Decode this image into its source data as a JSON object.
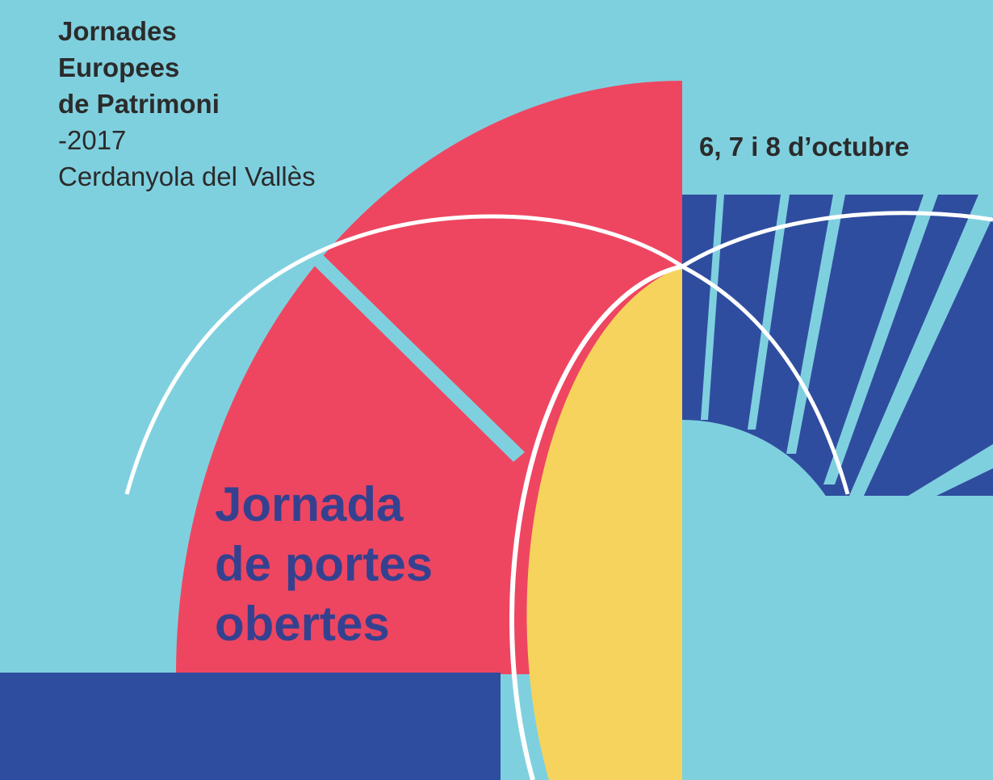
{
  "event": {
    "line1": "Jornades",
    "line2": "Europees",
    "line3": "de Patrimoni",
    "year": "-2017",
    "place": "Cerdanyola del Vallès"
  },
  "dates": "6, 7 i 8 d’octubre",
  "headline": {
    "line1": "Jornada",
    "line2": "de portes",
    "line3": "obertes"
  },
  "colors": {
    "background": "#7fd0df",
    "red": "#ee4660",
    "yellow": "#f6d35c",
    "navy": "#2f4d9f",
    "headline_text": "#35418f",
    "header_text": "#2b2b2b",
    "arc_line": "#ffffff"
  }
}
